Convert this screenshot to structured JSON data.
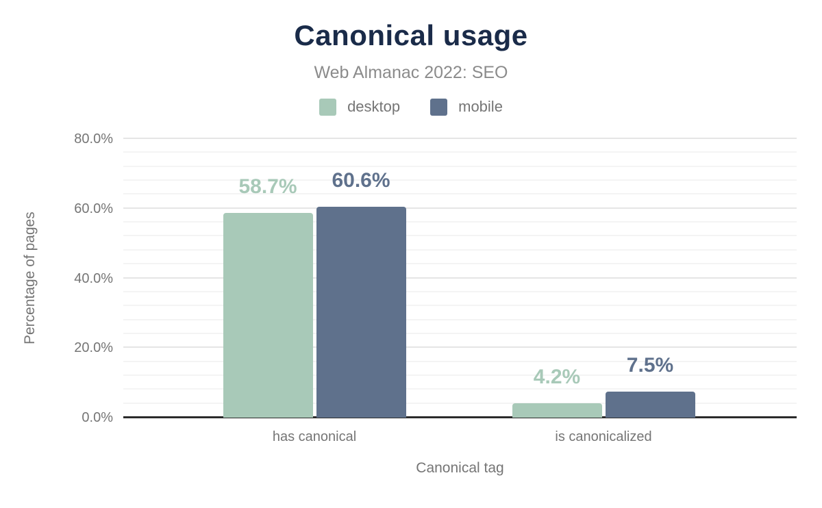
{
  "chart_data": {
    "type": "bar",
    "title": "Canonical usage",
    "subtitle": "Web Almanac 2022: SEO",
    "categories": [
      "has canonical",
      "is canonicalized"
    ],
    "series": [
      {
        "name": "desktop",
        "color": "#a8c9b8",
        "values": [
          58.7,
          4.2
        ],
        "labels": [
          "58.7%",
          "4.2%"
        ]
      },
      {
        "name": "mobile",
        "color": "#5f718c",
        "values": [
          60.6,
          7.5
        ],
        "labels": [
          "60.6%",
          "7.5%"
        ]
      }
    ],
    "xlabel": "Canonical tag",
    "ylabel": "Percentage of pages",
    "ylim": [
      0,
      80
    ],
    "y_major_ticks": [
      {
        "value": 0,
        "label": "0.0%"
      },
      {
        "value": 20,
        "label": "20.0%"
      },
      {
        "value": 40,
        "label": "40.0%"
      },
      {
        "value": 60,
        "label": "60.0%"
      },
      {
        "value": 80,
        "label": "80.0%"
      }
    ],
    "y_minor_step": 4,
    "grid": "horizontal",
    "legend_position": "top",
    "colors": {
      "title": "#1a2b49",
      "subtitle": "#8b8b8b",
      "axis_text": "#757575",
      "axis_line": "#2b2b2b",
      "major_grid": "#e5e5e5",
      "minor_grid": "#f4f4f4"
    }
  }
}
